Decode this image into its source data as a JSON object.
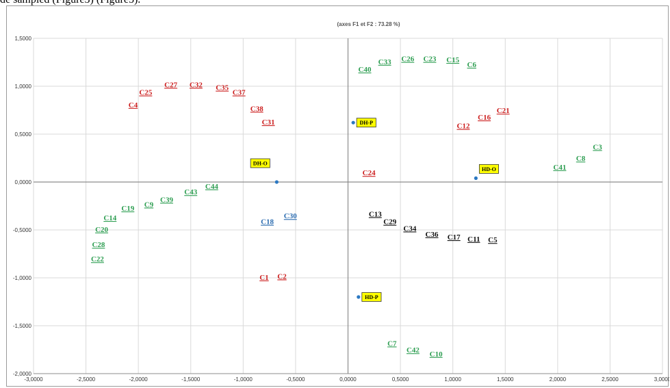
{
  "page": {
    "top_caption": "de sampled (Figure3) (Figure5)."
  },
  "colors": {
    "green": "#2e9e52",
    "red": "#cc1f1f",
    "black": "#111111",
    "blue": "#2b6cb0",
    "highlight": "#ffff00",
    "marker": "#2b78c2",
    "grid": "#d9d9d9",
    "axis": "#8c8c8c"
  },
  "chart_data": {
    "type": "scatter",
    "title": "(axes F1 et F2 : 73.28 %)",
    "xlim": [
      -3.0,
      3.0
    ],
    "ylim": [
      -2.0,
      1.5
    ],
    "x_ticks": [
      -3.0,
      -2.5,
      -2.0,
      -1.5,
      -1.0,
      -0.5,
      0.0,
      0.5,
      1.0,
      1.5,
      2.0,
      2.5,
      3.0
    ],
    "y_ticks": [
      -2.0,
      -1.5,
      -1.0,
      -0.5,
      0.0,
      0.5,
      1.0,
      1.5
    ],
    "x_tick_labels": [
      "-3,0000",
      "-2,5000",
      "-2,0000",
      "-1,5000",
      "-1,0000",
      "-0,5000",
      "0,0000",
      "0,5000",
      "1,0000",
      "1,5000",
      "2,0000",
      "2,5000",
      "3,0000"
    ],
    "y_tick_labels": [
      "-2,0000",
      "-1,5000",
      "-1,0000",
      "-0,5000",
      "0,0000",
      "0,5000",
      "1,0000",
      "1,5000"
    ],
    "grid": true,
    "observations": [
      {
        "label": "C40",
        "x": 0.16,
        "y": 1.15,
        "color": "green"
      },
      {
        "label": "C33",
        "x": 0.35,
        "y": 1.23,
        "color": "green"
      },
      {
        "label": "C26",
        "x": 0.57,
        "y": 1.26,
        "color": "green"
      },
      {
        "label": "C23",
        "x": 0.78,
        "y": 1.26,
        "color": "green"
      },
      {
        "label": "C15",
        "x": 1.0,
        "y": 1.25,
        "color": "green"
      },
      {
        "label": "C6",
        "x": 1.18,
        "y": 1.2,
        "color": "green"
      },
      {
        "label": "C3",
        "x": 2.38,
        "y": 0.34,
        "color": "green"
      },
      {
        "label": "C8",
        "x": 2.22,
        "y": 0.22,
        "color": "green"
      },
      {
        "label": "C41",
        "x": 2.02,
        "y": 0.13,
        "color": "green"
      },
      {
        "label": "C44",
        "x": -1.3,
        "y": -0.07,
        "color": "green"
      },
      {
        "label": "C43",
        "x": -1.5,
        "y": -0.13,
        "color": "green"
      },
      {
        "label": "C39",
        "x": -1.73,
        "y": -0.21,
        "color": "green"
      },
      {
        "label": "C9",
        "x": -1.9,
        "y": -0.26,
        "color": "green"
      },
      {
        "label": "C19",
        "x": -2.1,
        "y": -0.3,
        "color": "green"
      },
      {
        "label": "C14",
        "x": -2.27,
        "y": -0.4,
        "color": "green"
      },
      {
        "label": "C20",
        "x": -2.35,
        "y": -0.52,
        "color": "green"
      },
      {
        "label": "C28",
        "x": -2.38,
        "y": -0.68,
        "color": "green"
      },
      {
        "label": "C22",
        "x": -2.39,
        "y": -0.83,
        "color": "green"
      },
      {
        "label": "C7",
        "x": 0.42,
        "y": -1.71,
        "color": "green"
      },
      {
        "label": "C42",
        "x": 0.62,
        "y": -1.78,
        "color": "green"
      },
      {
        "label": "C10",
        "x": 0.84,
        "y": -1.82,
        "color": "green"
      },
      {
        "label": "C4",
        "x": -2.05,
        "y": 0.78,
        "color": "red"
      },
      {
        "label": "C25",
        "x": -1.93,
        "y": 0.91,
        "color": "red"
      },
      {
        "label": "C27",
        "x": -1.69,
        "y": 0.99,
        "color": "red"
      },
      {
        "label": "C32",
        "x": -1.45,
        "y": 0.99,
        "color": "red"
      },
      {
        "label": "C35",
        "x": -1.2,
        "y": 0.96,
        "color": "red"
      },
      {
        "label": "C37",
        "x": -1.04,
        "y": 0.91,
        "color": "red"
      },
      {
        "label": "C38",
        "x": -0.87,
        "y": 0.74,
        "color": "red"
      },
      {
        "label": "C31",
        "x": -0.76,
        "y": 0.6,
        "color": "red"
      },
      {
        "label": "C21",
        "x": 1.48,
        "y": 0.72,
        "color": "red"
      },
      {
        "label": "C16",
        "x": 1.3,
        "y": 0.65,
        "color": "red"
      },
      {
        "label": "C12",
        "x": 1.1,
        "y": 0.56,
        "color": "red"
      },
      {
        "label": "C24",
        "x": 0.2,
        "y": 0.07,
        "color": "red"
      },
      {
        "label": "C1",
        "x": -0.8,
        "y": -1.02,
        "color": "red"
      },
      {
        "label": "C2",
        "x": -0.63,
        "y": -1.01,
        "color": "red"
      },
      {
        "label": "C13",
        "x": 0.26,
        "y": -0.36,
        "color": "black"
      },
      {
        "label": "C29",
        "x": 0.4,
        "y": -0.44,
        "color": "black"
      },
      {
        "label": "C34",
        "x": 0.59,
        "y": -0.51,
        "color": "black"
      },
      {
        "label": "C36",
        "x": 0.8,
        "y": -0.57,
        "color": "black"
      },
      {
        "label": "C17",
        "x": 1.01,
        "y": -0.6,
        "color": "black"
      },
      {
        "label": "C11",
        "x": 1.2,
        "y": -0.62,
        "color": "black"
      },
      {
        "label": "C5",
        "x": 1.38,
        "y": -0.63,
        "color": "black"
      },
      {
        "label": "C30",
        "x": -0.55,
        "y": -0.38,
        "color": "blue"
      },
      {
        "label": "C18",
        "x": -0.77,
        "y": -0.44,
        "color": "blue"
      }
    ],
    "supplementary": [
      {
        "label": "DH-P",
        "x": 0.05,
        "y": 0.62
      },
      {
        "label": "DH-O",
        "x": -0.68,
        "y": 0.0
      },
      {
        "label": "HD-O",
        "x": 1.22,
        "y": 0.04
      },
      {
        "label": "HD-P",
        "x": 0.1,
        "y": -1.2
      }
    ]
  }
}
